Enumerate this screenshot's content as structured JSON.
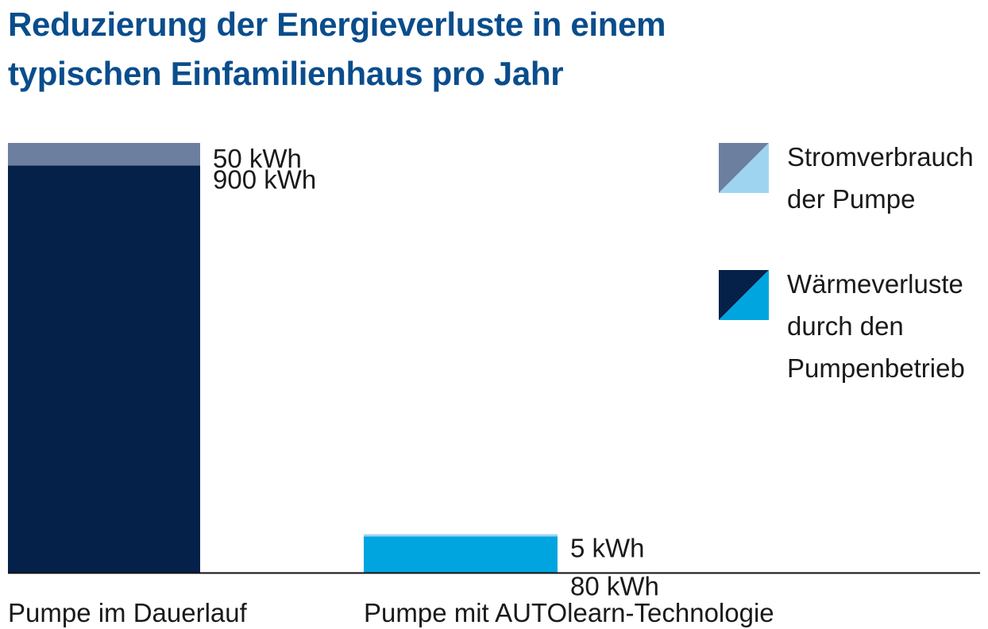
{
  "chart_data": {
    "type": "bar",
    "stacked": true,
    "title_lines": [
      "Reduzierung der Energieverluste in einem",
      "typischen Einfamilienhaus pro Jahr"
    ],
    "categories": [
      "Pumpe im Dauerlauf",
      "Pumpe mit AUTOlearn-Technologie"
    ],
    "series": [
      {
        "key": "waerme",
        "legend_lines": [
          "Wärmeverluste",
          "durch den",
          "Pumpenbetrieb"
        ],
        "values": [
          900,
          80
        ],
        "labels": [
          "900 kWh",
          "80 kWh"
        ],
        "colors": [
          "#05214a",
          "#00a5e0"
        ]
      },
      {
        "key": "strom",
        "legend_lines": [
          "Stromverbrauch",
          "der Pumpe"
        ],
        "values": [
          50,
          5
        ],
        "labels": [
          "50 kWh",
          "5 kWh"
        ],
        "colors": [
          "#6c7f9f",
          "#9fd4f1"
        ]
      }
    ],
    "unit": "kWh",
    "ylim": [
      0,
      950
    ],
    "grid": false,
    "legend_position": "right"
  }
}
